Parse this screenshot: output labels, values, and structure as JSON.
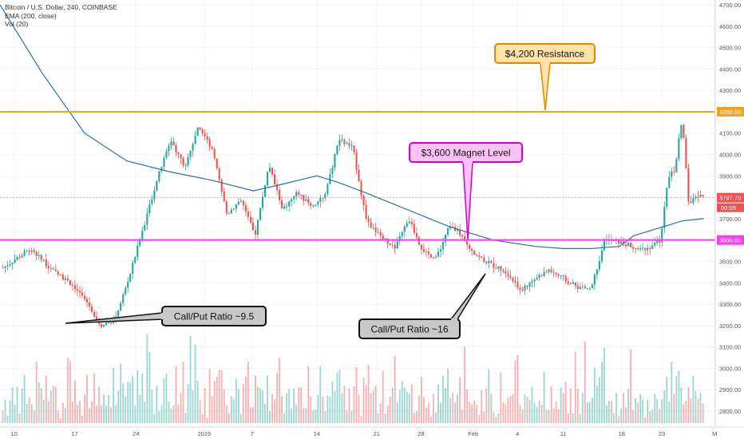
{
  "legend": {
    "line1": "Bitcoin / U.S. Dollar, 240, COINBASE",
    "line2": "EMA (200, close)",
    "line3": "Vol (20)"
  },
  "colors": {
    "up": "#26a69a",
    "down": "#ef5350",
    "ema": "#2e6fa8",
    "resistance": "#f7a21b",
    "magnet": "#ff3bf0",
    "current": "#ef5350",
    "callout_border": "#222222",
    "callout_fill": "#c8c8c8"
  },
  "chart_data": {
    "type": "candlestick",
    "y_axis": {
      "min": 2700,
      "max": 4750,
      "ticks": [
        "4700.00",
        "4600.00",
        "4500.00",
        "4400.00",
        "4300.00",
        "4200.00",
        "4100.00",
        "4000.00",
        "3900.00",
        "3800.00",
        "3700.00",
        "3600.00",
        "3500.00",
        "3400.00",
        "3300.00",
        "3200.00",
        "3100.00",
        "3000.00",
        "2900.00",
        "2800.00"
      ]
    },
    "x_axis": {
      "labels": [
        "10",
        "17",
        "24",
        "2019",
        "7",
        "14",
        "21",
        "28",
        "Feb",
        "4",
        "11",
        "18",
        "23",
        "M"
      ]
    },
    "price_path": [
      [
        0,
        3470
      ],
      [
        4,
        3560
      ],
      [
        7,
        3460
      ],
      [
        10,
        3390
      ],
      [
        12,
        3310
      ],
      [
        14,
        3200
      ],
      [
        16,
        3230
      ],
      [
        18,
        3420
      ],
      [
        20,
        3650
      ],
      [
        22,
        3880
      ],
      [
        24,
        4070
      ],
      [
        26,
        3940
      ],
      [
        28,
        4140
      ],
      [
        30,
        4010
      ],
      [
        32,
        3720
      ],
      [
        34,
        3790
      ],
      [
        36,
        3620
      ],
      [
        38,
        3950
      ],
      [
        40,
        3740
      ],
      [
        42,
        3820
      ],
      [
        44,
        3760
      ],
      [
        46,
        3800
      ],
      [
        48,
        4070
      ],
      [
        50,
        4030
      ],
      [
        52,
        3680
      ],
      [
        54,
        3620
      ],
      [
        56,
        3560
      ],
      [
        58,
        3700
      ],
      [
        60,
        3540
      ],
      [
        62,
        3520
      ],
      [
        64,
        3680
      ],
      [
        66,
        3590
      ],
      [
        68,
        3520
      ],
      [
        70,
        3480
      ],
      [
        72,
        3450
      ],
      [
        74,
        3360
      ],
      [
        76,
        3420
      ],
      [
        78,
        3460
      ],
      [
        80,
        3420
      ],
      [
        82,
        3380
      ],
      [
        84,
        3370
      ],
      [
        86,
        3600
      ],
      [
        88,
        3590
      ],
      [
        90,
        3570
      ],
      [
        92,
        3560
      ],
      [
        94,
        3600
      ],
      [
        95,
        3890
      ],
      [
        96,
        3930
      ],
      [
        97,
        4170
      ],
      [
        98,
        3760
      ],
      [
        99,
        3810
      ],
      [
        100,
        3797
      ]
    ],
    "ema_path": [
      [
        0,
        4700
      ],
      [
        6,
        4380
      ],
      [
        12,
        4100
      ],
      [
        18,
        3970
      ],
      [
        24,
        3920
      ],
      [
        30,
        3880
      ],
      [
        36,
        3830
      ],
      [
        40,
        3860
      ],
      [
        45,
        3900
      ],
      [
        48,
        3870
      ],
      [
        52,
        3820
      ],
      [
        58,
        3740
      ],
      [
        64,
        3660
      ],
      [
        70,
        3600
      ],
      [
        76,
        3570
      ],
      [
        80,
        3560
      ],
      [
        84,
        3560
      ],
      [
        88,
        3570
      ],
      [
        90,
        3620
      ],
      [
        94,
        3660
      ],
      [
        97,
        3690
      ],
      [
        100,
        3700
      ]
    ],
    "levels": [
      {
        "name": "resistance",
        "value": 4200,
        "axis_label": "4200.00"
      },
      {
        "name": "magnet",
        "value": 3600,
        "axis_label": "3600.00"
      }
    ],
    "current_price": {
      "value": 3797.7,
      "label": "3797.70",
      "countdown": "00:09"
    },
    "annotations": [
      {
        "name": "resistance-callout",
        "text": "$4,200 Resistance"
      },
      {
        "name": "magnet-callout",
        "text": "$3,600 Magnet Level"
      },
      {
        "name": "callput-callout-1",
        "text": "Call/Put Ratio ~9.5"
      },
      {
        "name": "callput-callout-2",
        "text": "Call/Put Ratio ~16"
      }
    ]
  }
}
